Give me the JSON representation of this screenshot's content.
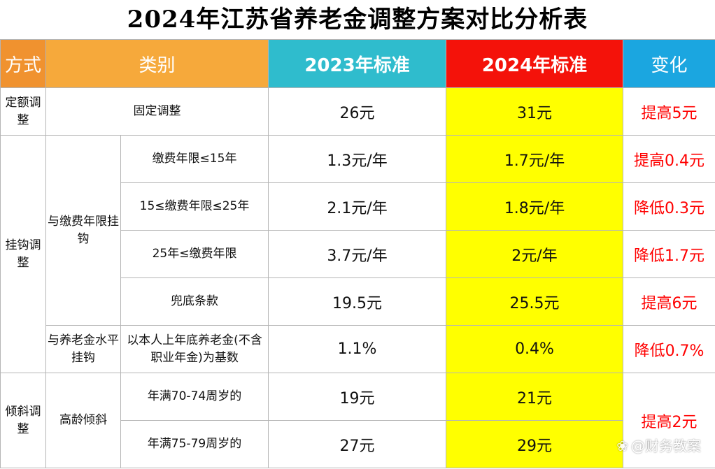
{
  "title": "2024年江苏省养老金调整方案对比分析表",
  "headers": {
    "method": "方式",
    "category": "类别",
    "std2023": "2023年标准",
    "std2024": "2024年标准",
    "change": "变化"
  },
  "groups": {
    "fixed": "定额调整",
    "linked": "挂钩调整",
    "tilted": "倾斜调整"
  },
  "subgroups": {
    "years_linked": "与缴费年限挂钩",
    "pension_linked": "与养老金水平挂钩",
    "elderly": "高龄倾斜"
  },
  "rows": [
    {
      "label": "固定调整",
      "v2023": "26元",
      "v2024": "31元",
      "change": "提高5元"
    },
    {
      "label": "缴费年限≤15年",
      "v2023": "1.3元/年",
      "v2024": "1.7元/年",
      "change": "提高0.4元"
    },
    {
      "label": "15≤缴费年限≤25年",
      "v2023": "2.1元/年",
      "v2024": "1.8元/年",
      "change": "降低0.3元"
    },
    {
      "label": "25年≤缴费年限",
      "v2023": "3.7元/年",
      "v2024": "2元/年",
      "change": "降低1.7元"
    },
    {
      "label": "兜底条款",
      "v2023": "19.5元",
      "v2024": "25.5元",
      "change": "提高6元"
    },
    {
      "label": "以本人上年底养老金(不含职业年金)为基数",
      "v2023": "1.1%",
      "v2024": "0.4%",
      "change": "降低0.7%"
    },
    {
      "label": "年满70-74周岁的",
      "v2023": "19元",
      "v2024": "21元",
      "change": "提高2元"
    },
    {
      "label": "年满75-79周岁的",
      "v2023": "27元",
      "v2024": "29元",
      "change": ""
    }
  ],
  "watermark": "@财务教案",
  "colors": {
    "header_method": "#f0922f",
    "header_category": "#f6a93b",
    "header_2023": "#2fbccd",
    "header_2024": "#f4120a",
    "header_change": "#1ba6e0",
    "highlight_2024": "#ffff00",
    "change_text": "#ff0000"
  }
}
